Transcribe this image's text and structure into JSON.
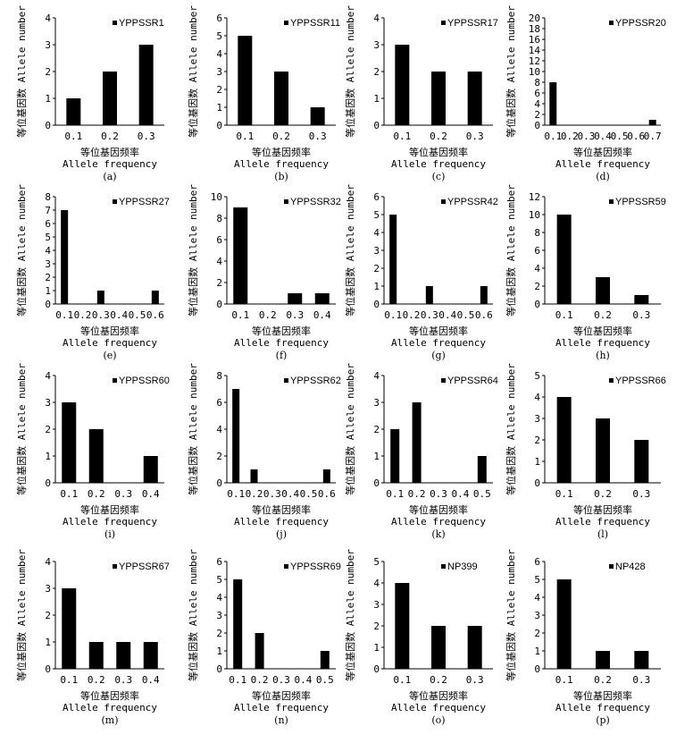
{
  "figure": {
    "ylabel_cn": "等位基因数",
    "ylabel_en": "Allele number",
    "xlabel_cn": "等位基因频率",
    "xlabel_en": "Allele frequency"
  },
  "chart_data": [
    {
      "type": "bar",
      "panel": "(a)",
      "title": "YPPSSR1",
      "categories": [
        "0.1",
        "0.2",
        "0.3"
      ],
      "values": [
        1,
        2,
        3
      ],
      "ylim": [
        0,
        4
      ],
      "yticks": [
        0,
        1,
        2,
        3,
        4
      ]
    },
    {
      "type": "bar",
      "panel": "(b)",
      "title": "YPPSSR11",
      "categories": [
        "0.1",
        "0.2",
        "0.3"
      ],
      "values": [
        5,
        3,
        1
      ],
      "ylim": [
        0,
        6
      ],
      "yticks": [
        0,
        1,
        2,
        3,
        4,
        5,
        6
      ]
    },
    {
      "type": "bar",
      "panel": "(c)",
      "title": "YPPSSR17",
      "categories": [
        "0.1",
        "0.2",
        "0.3"
      ],
      "values": [
        3,
        2,
        2
      ],
      "ylim": [
        0,
        4
      ],
      "yticks": [
        0,
        1,
        2,
        3,
        4
      ]
    },
    {
      "type": "bar",
      "panel": "(d)",
      "title": "YPPSSR20",
      "categories": [
        "0.1",
        "0.2",
        "0.3",
        "0.4",
        "0.5",
        "0.6",
        "0.7"
      ],
      "values": [
        8,
        0,
        0,
        0,
        0,
        0,
        1
      ],
      "ylim": [
        0,
        20
      ],
      "yticks": [
        0,
        2,
        4,
        6,
        8,
        10,
        12,
        14,
        16,
        18,
        20
      ]
    },
    {
      "type": "bar",
      "panel": "(e)",
      "title": "YPPSSR27",
      "categories": [
        "0.1",
        "0.2",
        "0.3",
        "0.4",
        "0.5",
        "0.6"
      ],
      "values": [
        7,
        0,
        1,
        0,
        0,
        1
      ],
      "ylim": [
        0,
        8
      ],
      "yticks": [
        0,
        1,
        2,
        3,
        4,
        5,
        6,
        7,
        8
      ]
    },
    {
      "type": "bar",
      "panel": "(f)",
      "title": "YPPSSR32",
      "categories": [
        "0.1",
        "0.2",
        "0.3",
        "0.4"
      ],
      "values": [
        9,
        0,
        1,
        1
      ],
      "ylim": [
        0,
        10
      ],
      "yticks": [
        0,
        2,
        4,
        6,
        8,
        10
      ]
    },
    {
      "type": "bar",
      "panel": "(g)",
      "title": "YPPSSR42",
      "categories": [
        "0.1",
        "0.2",
        "0.3",
        "0.4",
        "0.5",
        "0.6"
      ],
      "values": [
        5,
        0,
        1,
        0,
        0,
        1
      ],
      "ylim": [
        0,
        6
      ],
      "yticks": [
        0,
        1,
        2,
        3,
        4,
        5,
        6
      ]
    },
    {
      "type": "bar",
      "panel": "(h)",
      "title": "YPPSSR59",
      "categories": [
        "0.1",
        "0.2",
        "0.3"
      ],
      "values": [
        10,
        3,
        1
      ],
      "ylim": [
        0,
        12
      ],
      "yticks": [
        0,
        2,
        4,
        6,
        8,
        10,
        12
      ]
    },
    {
      "type": "bar",
      "panel": "(i)",
      "title": "YPPSSR60",
      "categories": [
        "0.1",
        "0.2",
        "0.3",
        "0.4"
      ],
      "values": [
        3,
        2,
        0,
        1
      ],
      "ylim": [
        0,
        4
      ],
      "yticks": [
        0,
        1,
        2,
        3,
        4
      ]
    },
    {
      "type": "bar",
      "panel": "(j)",
      "title": "YPPSSR62",
      "categories": [
        "0.1",
        "0.2",
        "0.3",
        "0.4",
        "0.5",
        "0.6"
      ],
      "values": [
        7,
        1,
        0,
        0,
        0,
        1
      ],
      "ylim": [
        0,
        8
      ],
      "yticks": [
        0,
        2,
        4,
        6,
        8
      ]
    },
    {
      "type": "bar",
      "panel": "(k)",
      "title": "YPPSSR64",
      "categories": [
        "0.1",
        "0.2",
        "0.3",
        "0.4",
        "0.5"
      ],
      "values": [
        2,
        3,
        0,
        0,
        1
      ],
      "ylim": [
        0,
        4
      ],
      "yticks": [
        0,
        1,
        2,
        3,
        4
      ]
    },
    {
      "type": "bar",
      "panel": "(l)",
      "title": "YPPSSR66",
      "categories": [
        "0.1",
        "0.2",
        "0.3"
      ],
      "values": [
        4,
        3,
        2
      ],
      "ylim": [
        0,
        5
      ],
      "yticks": [
        0,
        1,
        2,
        3,
        4,
        5
      ]
    },
    {
      "type": "bar",
      "panel": "(m)",
      "title": "YPPSSR67",
      "categories": [
        "0.1",
        "0.2",
        "0.3",
        "0.4"
      ],
      "values": [
        3,
        1,
        1,
        1
      ],
      "ylim": [
        0,
        4
      ],
      "yticks": [
        0,
        1,
        2,
        3,
        4
      ]
    },
    {
      "type": "bar",
      "panel": "(n)",
      "title": "YPPSSR69",
      "categories": [
        "0.1",
        "0.2",
        "0.3",
        "0.4",
        "0.5"
      ],
      "values": [
        5,
        2,
        0,
        0,
        1
      ],
      "ylim": [
        0,
        6
      ],
      "yticks": [
        0,
        1,
        2,
        3,
        4,
        5,
        6
      ]
    },
    {
      "type": "bar",
      "panel": "(o)",
      "title": "NP399",
      "categories": [
        "0.1",
        "0.2",
        "0.3"
      ],
      "values": [
        4,
        2,
        2
      ],
      "ylim": [
        0,
        5
      ],
      "yticks": [
        0,
        1,
        2,
        3,
        4,
        5
      ]
    },
    {
      "type": "bar",
      "panel": "(p)",
      "title": "NP428",
      "categories": [
        "0.1",
        "0.2",
        "0.3"
      ],
      "values": [
        5,
        1,
        1
      ],
      "ylim": [
        0,
        6
      ],
      "yticks": [
        0,
        1,
        2,
        3,
        4,
        5,
        6
      ]
    }
  ]
}
